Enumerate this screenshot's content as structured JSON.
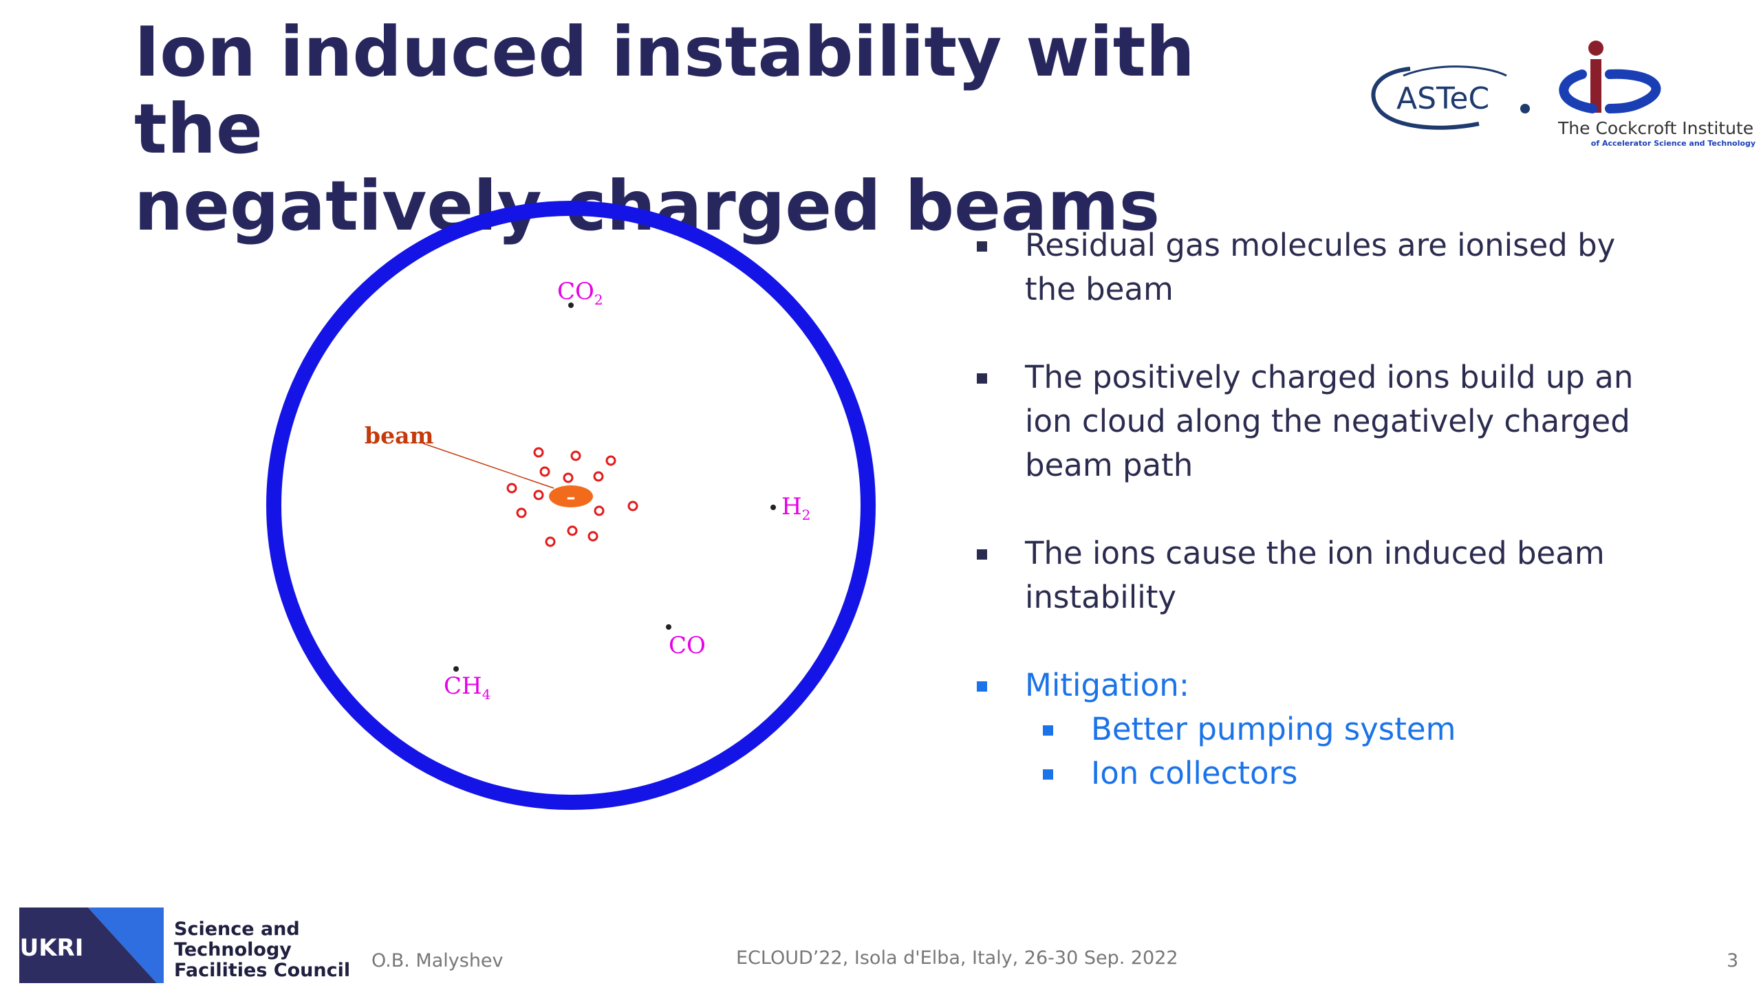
{
  "slide": {
    "title_line1": "Ion induced instability with the",
    "title_line2": "negatively charged beams"
  },
  "logos": {
    "astec_text": "ASTeC",
    "cockcroft_line1": "The Cockcroft Institute",
    "cockcroft_line2": "of Accelerator Science and Technology",
    "ukri_text": "UKRI",
    "stfc_line1": "Science and",
    "stfc_line2": "Technology",
    "stfc_line3": "Facilities Council"
  },
  "diagram": {
    "beam_label": "beam",
    "beam_charge": "–",
    "molecules": {
      "co2": {
        "base": "CO",
        "sub": "2"
      },
      "h2": {
        "base": "H",
        "sub": "2"
      },
      "co": {
        "base": "CO",
        "sub": ""
      },
      "ch4": {
        "base": "CH",
        "sub": "4"
      }
    },
    "colors": {
      "pipe": "#1414e6",
      "beam": "#f26b1d",
      "ion": "#e31b1b",
      "molecule_label": "#e600e6",
      "beam_label": "#c43a0a"
    }
  },
  "bullets": [
    "Residual gas molecules are ionised by the beam",
    "The positively charged ions build up an ion cloud along the negatively charged beam path",
    "The ions cause the ion induced beam instability"
  ],
  "mitigation": {
    "label": "Mitigation:",
    "items": [
      "Better pumping system",
      "Ion collectors"
    ]
  },
  "footer": {
    "author": "O.B. Malyshev",
    "event": "ECLOUD’22, Isola d'Elba, Italy, 26-30 Sep. 2022",
    "page": "3"
  }
}
